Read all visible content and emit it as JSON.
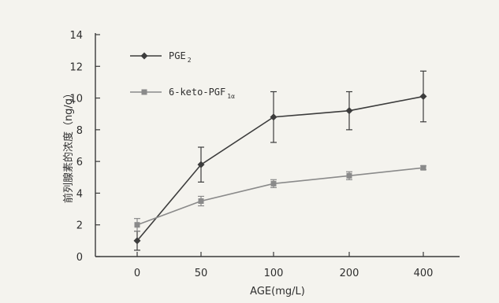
{
  "chart_data": {
    "type": "line",
    "x": [
      "0",
      "50",
      "100",
      "200",
      "400"
    ],
    "xlabel": "AGE(mg/L)",
    "ylabel": "前列腺素的浓度（ng/g）",
    "ylim": [
      0,
      14
    ],
    "yticks": [
      "0",
      "2",
      "4",
      "6",
      "8",
      "10",
      "12",
      "14"
    ],
    "grid": false,
    "legend_position": "top-left",
    "series": [
      {
        "name": "PGE",
        "name_sub": "2",
        "marker": "diamond",
        "color": "#3c3c3c",
        "values": [
          1.0,
          5.8,
          8.8,
          9.2,
          10.1
        ],
        "error": [
          0.6,
          1.1,
          1.6,
          1.2,
          1.6
        ]
      },
      {
        "name": "6-keto-PGF",
        "name_sub": "1α",
        "marker": "square",
        "color": "#8a8a8a",
        "values": [
          2.0,
          3.5,
          4.6,
          5.1,
          5.6
        ],
        "error": [
          0.4,
          0.3,
          0.25,
          0.25,
          0.12
        ]
      }
    ]
  }
}
